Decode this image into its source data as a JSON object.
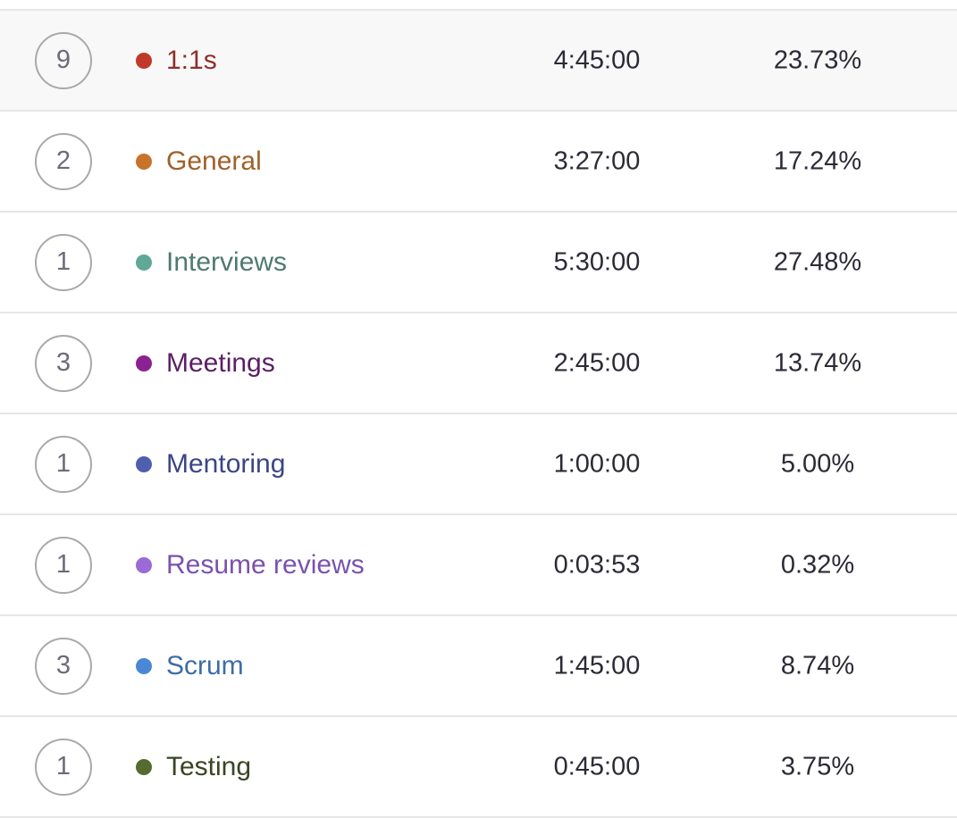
{
  "rows": [
    {
      "count": "9",
      "name": "1:1s",
      "duration": "4:45:00",
      "percent": "23.73%",
      "dot_color": "#c0392b",
      "text_color": "#8e2f2a",
      "highlight": true
    },
    {
      "count": "2",
      "name": "General",
      "duration": "3:27:00",
      "percent": "17.24%",
      "dot_color": "#c8732a",
      "text_color": "#a0612a",
      "highlight": false
    },
    {
      "count": "1",
      "name": "Interviews",
      "duration": "5:30:00",
      "percent": "27.48%",
      "dot_color": "#5fa898",
      "text_color": "#4e7a70",
      "highlight": false
    },
    {
      "count": "3",
      "name": "Meetings",
      "duration": "2:45:00",
      "percent": "13.74%",
      "dot_color": "#8a2291",
      "text_color": "#5b1f66",
      "highlight": false
    },
    {
      "count": "1",
      "name": "Mentoring",
      "duration": "1:00:00",
      "percent": "5.00%",
      "dot_color": "#4d5fae",
      "text_color": "#3b4585",
      "highlight": false
    },
    {
      "count": "1",
      "name": "Resume reviews",
      "duration": "0:03:53",
      "percent": "0.32%",
      "dot_color": "#9b6ad6",
      "text_color": "#7a52ad",
      "highlight": false
    },
    {
      "count": "3",
      "name": "Scrum",
      "duration": "1:45:00",
      "percent": "8.74%",
      "dot_color": "#4a88d6",
      "text_color": "#3e6ca6",
      "highlight": false
    },
    {
      "count": "1",
      "name": "Testing",
      "duration": "0:45:00",
      "percent": "3.75%",
      "dot_color": "#556b2f",
      "text_color": "#3a4422",
      "highlight": false
    }
  ]
}
